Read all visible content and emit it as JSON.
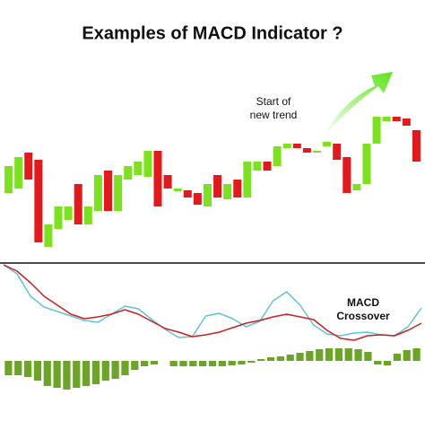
{
  "chart_data": [
    {
      "type": "candlestick",
      "title": "Examples of MACD Indicator ?",
      "annotation": [
        "Start of",
        "new trend"
      ],
      "up_color": "#7be31d",
      "down_color": "#e3191c",
      "ylim": [
        0,
        230
      ],
      "open": [
        75,
        80,
        120,
        112,
        15,
        35,
        45,
        85,
        40,
        55,
        100,
        55,
        90,
        95,
        93,
        122,
        95,
        77,
        78,
        75,
        60,
        95,
        68,
        90,
        70,
        100,
        110,
        105,
        125,
        130,
        125,
        120,
        127,
        130,
        115,
        78,
        85,
        130,
        155,
        160,
        158,
        145
      ],
      "close": [
        105,
        115,
        90,
        20,
        40,
        60,
        60,
        40,
        60,
        95,
        55,
        95,
        105,
        110,
        122,
        60,
        80,
        80,
        70,
        62,
        85,
        70,
        85,
        70,
        110,
        110,
        100,
        127,
        130,
        125,
        120,
        122,
        132,
        112,
        75,
        85,
        130,
        160,
        160,
        155,
        150,
        110
      ]
    },
    {
      "type": "line",
      "annotation": [
        "MACD",
        "Crossover"
      ],
      "ylim": [
        0,
        90
      ],
      "series": [
        {
          "color": "#5cc6d6",
          "values": [
            90,
            80,
            55,
            43,
            38,
            33,
            28,
            26,
            35,
            44,
            41,
            29,
            18,
            9,
            10,
            33,
            36,
            30,
            21,
            27,
            50,
            60,
            45,
            23,
            13,
            11,
            14,
            15,
            12,
            11,
            21,
            42
          ]
        },
        {
          "color": "#cc2020",
          "values": [
            90,
            83,
            70,
            55,
            45,
            35,
            30,
            32,
            35,
            40,
            35,
            27,
            19,
            15,
            10,
            12,
            15,
            20,
            25,
            28,
            32,
            35,
            32,
            29,
            17,
            8,
            6,
            11,
            12,
            11,
            17,
            25
          ]
        }
      ]
    },
    {
      "type": "bar",
      "color": "#6aa526",
      "ylim": [
        -40,
        20
      ],
      "values": [
        -16,
        -16,
        -18,
        -22,
        -28,
        -30,
        -32,
        -30,
        -28,
        -26,
        -22,
        -20,
        -16,
        -10,
        -6,
        -4,
        0,
        -6,
        -6,
        -6,
        -6,
        -6,
        -6,
        -5,
        -4,
        -2,
        2,
        4,
        5,
        7,
        9,
        11,
        13,
        14,
        14,
        14,
        13,
        10,
        -4,
        -5,
        8,
        12,
        14
      ]
    }
  ]
}
